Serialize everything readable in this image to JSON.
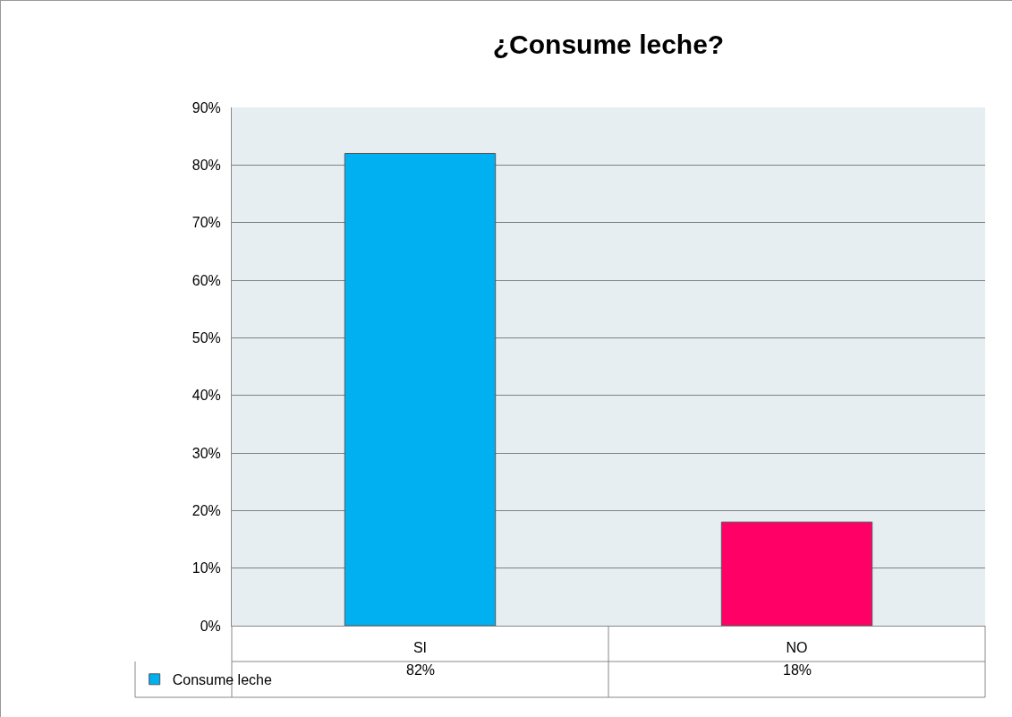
{
  "chart_data": {
    "type": "bar",
    "title": "¿Consume leche?",
    "categories": [
      "SI",
      "NO"
    ],
    "series": [
      {
        "name": "Consume leche",
        "colors": [
          "#00b0f0",
          "#ff0066"
        ],
        "values": [
          82,
          18
        ]
      }
    ],
    "value_labels": [
      "82%",
      "18%"
    ],
    "ylim": [
      0,
      90
    ],
    "yticks": [
      {
        "value": 0,
        "label": "0%"
      },
      {
        "value": 10,
        "label": "10%"
      },
      {
        "value": 20,
        "label": "20%"
      },
      {
        "value": 30,
        "label": "30%"
      },
      {
        "value": 40,
        "label": "40%"
      },
      {
        "value": 50,
        "label": "50%"
      },
      {
        "value": 60,
        "label": "60%"
      },
      {
        "value": 70,
        "label": "70%"
      },
      {
        "value": 80,
        "label": "80%"
      },
      {
        "value": 90,
        "label": "90%"
      }
    ],
    "grid": "y",
    "legend": "bottom left"
  }
}
